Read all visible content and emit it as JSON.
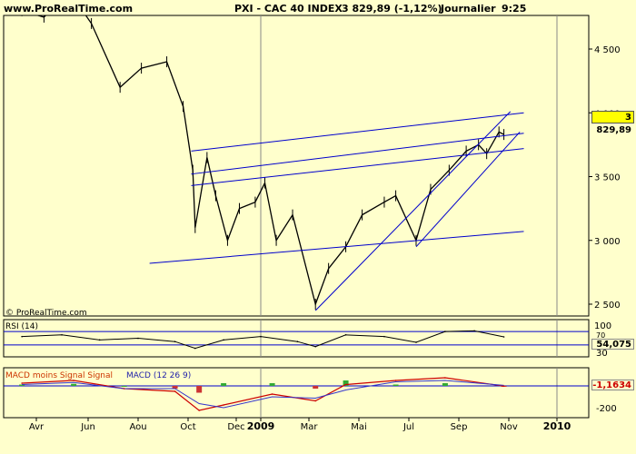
{
  "header": {
    "brand": "www.ProRealTime.com",
    "symbol": "PXI - CAC 40 INDEX",
    "last": "3 829,89 (-1,12%)",
    "period": "Journalier",
    "time": "9:25"
  },
  "watermark": "© ProRealTime.com",
  "price_tag": "3 829,89",
  "rsi": {
    "title": "RSI (14)",
    "value": "54,075",
    "levels": [
      "100",
      "70",
      "30"
    ]
  },
  "macd": {
    "title_left": "MACD moins Signal Signal",
    "title_right": "MACD (12 26 9)",
    "value": "-1,1634",
    "levels": [
      "-200"
    ]
  },
  "colors": {
    "background": "#ffffcc",
    "price": "#000000",
    "trendline": "#0000cc",
    "gridline": "#c8c8a0",
    "price_tag": "#ffff00",
    "macd_line": "#cc0000",
    "signal_line": "#3333cc",
    "hist_pos": "#33aa33",
    "hist_neg": "#cc3333"
  },
  "chart_data": [
    {
      "type": "line",
      "title": "PXI - CAC 40 INDEX",
      "x_tick_labels": [
        "Avr",
        "Jun",
        "Aou",
        "Oct",
        "Dec",
        "2009",
        "Mar",
        "Mai",
        "Jul",
        "Sep",
        "Nov",
        "2010"
      ],
      "y_tick_labels": [
        "4 500",
        "4 000",
        "3 500",
        "3 000",
        "2 500"
      ],
      "ylim": [
        2400,
        4750
      ],
      "x": [
        "2008-03-15",
        "2008-04-10",
        "2008-05-10",
        "2008-06-05",
        "2008-07-10",
        "2008-08-05",
        "2008-09-05",
        "2008-09-25",
        "2008-10-07",
        "2008-10-10",
        "2008-10-25",
        "2008-11-05",
        "2008-11-20",
        "2008-12-05",
        "2008-12-25",
        "2009-01-06",
        "2009-01-20",
        "2009-02-09",
        "2009-03-09",
        "2009-03-25",
        "2009-04-15",
        "2009-05-05",
        "2009-06-01",
        "2009-06-15",
        "2009-07-10",
        "2009-07-28",
        "2009-08-20",
        "2009-09-10",
        "2009-09-25",
        "2009-10-05",
        "2009-10-20",
        "2009-10-26"
      ],
      "y": [
        4800,
        4750,
        4950,
        4700,
        4200,
        4350,
        4400,
        4050,
        3550,
        3100,
        3650,
        3350,
        3000,
        3250,
        3300,
        3450,
        3000,
        3200,
        2500,
        2780,
        2950,
        3200,
        3300,
        3350,
        3000,
        3400,
        3550,
        3700,
        3750,
        3680,
        3850,
        3830
      ],
      "trendlines": [
        {
          "x": [
            "2008-10-05",
            "2009-11-20"
          ],
          "y": [
            3700,
            4000
          ]
        },
        {
          "x": [
            "2008-10-05",
            "2009-11-20"
          ],
          "y": [
            3520,
            3840
          ]
        },
        {
          "x": [
            "2008-10-05",
            "2009-11-20"
          ],
          "y": [
            3430,
            3720
          ]
        },
        {
          "x": [
            "2008-08-15",
            "2009-11-20"
          ],
          "y": [
            2820,
            3070
          ]
        },
        {
          "x": [
            "2009-03-09",
            "2009-11-03"
          ],
          "y": [
            2450,
            4010
          ]
        },
        {
          "x": [
            "2009-07-10",
            "2009-11-15"
          ],
          "y": [
            2950,
            3850
          ]
        }
      ]
    },
    {
      "type": "line",
      "title": "RSI (14)",
      "y_tick_labels": [
        "100",
        "70",
        "30"
      ],
      "ylim": [
        0,
        100
      ],
      "x": [
        "2008-03-15",
        "2008-05-01",
        "2008-06-15",
        "2008-08-01",
        "2008-09-15",
        "2008-10-10",
        "2008-11-15",
        "2009-01-01",
        "2009-02-15",
        "2009-03-09",
        "2009-04-15",
        "2009-06-01",
        "2009-07-10",
        "2009-08-15",
        "2009-09-20",
        "2009-10-26"
      ],
      "y": [
        55,
        60,
        45,
        50,
        40,
        20,
        45,
        55,
        40,
        25,
        60,
        55,
        38,
        70,
        72,
        54.075
      ],
      "levels": [
        70,
        30
      ]
    },
    {
      "type": "bar",
      "title": "MACD moins Signal Signal / MACD (12 26 9)",
      "y_tick_labels": [
        "-200"
      ],
      "ylim": [
        -220,
        120
      ],
      "series": [
        {
          "name": "MACD (12 26 9)",
          "x": [
            "2008-03-15",
            "2008-05-15",
            "2008-07-15",
            "2008-09-15",
            "2008-10-15",
            "2008-11-15",
            "2009-01-15",
            "2009-03-09",
            "2009-04-15",
            "2009-06-15",
            "2009-08-15",
            "2009-10-26"
          ],
          "values": [
            20,
            40,
            -20,
            -40,
            -180,
            -140,
            -60,
            -110,
            10,
            40,
            60,
            -1.1634
          ]
        },
        {
          "name": "MACD moins Signal Signal",
          "x": [
            "2008-03-15",
            "2008-05-15",
            "2008-07-15",
            "2008-09-15",
            "2008-10-15",
            "2008-11-15",
            "2009-01-15",
            "2009-03-09",
            "2009-04-15",
            "2009-06-15",
            "2009-08-15",
            "2009-10-26"
          ],
          "values": [
            10,
            15,
            0,
            -20,
            -50,
            20,
            20,
            -20,
            40,
            10,
            20,
            -5
          ]
        }
      ]
    }
  ]
}
